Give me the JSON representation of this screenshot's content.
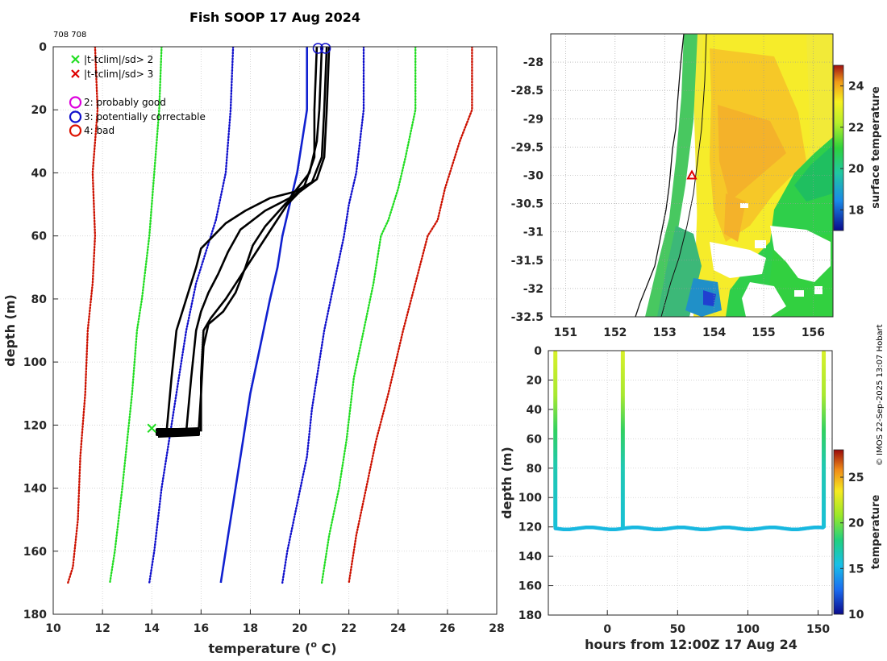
{
  "figure": {
    "title": "Fish SOOP 17 Aug 2024",
    "id_text": "708 708",
    "credit": "© IMOS 22-Sep-2025 13:07 Hobart"
  },
  "colors": {
    "green_clim": "#22dd22",
    "blue_clim": "#1010cc",
    "red_clim": "#cc1100",
    "mean_line": "#1020d0",
    "profiles": "#000000"
  },
  "chart_data": [
    {
      "type": "line",
      "title": "Fish SOOP 17 Aug 2024",
      "xlabel": "temperature (° C)",
      "xlabel_parts": [
        "temperature (",
        "o",
        " C)"
      ],
      "ylabel": "depth (m)",
      "xlim": [
        10,
        28
      ],
      "ylim": [
        180,
        0
      ],
      "xticks": [
        10,
        12,
        14,
        16,
        18,
        20,
        22,
        24,
        26,
        28
      ],
      "yticks": [
        0,
        20,
        40,
        60,
        80,
        100,
        120,
        140,
        160,
        180
      ],
      "grid": true,
      "legend": {
        "position": "top-left",
        "entries": [
          {
            "marker": "x",
            "color": "#22dd22",
            "label": "|t-tclim|/sd> 2"
          },
          {
            "marker": "x",
            "color": "#dd0000",
            "label": "|t-tclim|/sd> 3"
          },
          {
            "marker": "o",
            "color": "#dd00dd",
            "label": "2: probably good"
          },
          {
            "marker": "o",
            "color": "#1010cc",
            "label": "3: potentially correctable"
          },
          {
            "marker": "o",
            "color": "#dd1100",
            "label": "4: bad"
          }
        ]
      },
      "series": [
        {
          "name": "clim -3sd",
          "style": "dotted",
          "color": "#cc1100",
          "points": [
            [
              11.7,
              0
            ],
            [
              11.8,
              20
            ],
            [
              11.6,
              40
            ],
            [
              11.7,
              60
            ],
            [
              11.6,
              75
            ],
            [
              11.4,
              90
            ],
            [
              11.3,
              110
            ],
            [
              11.1,
              130
            ],
            [
              11.0,
              150
            ],
            [
              10.8,
              165
            ],
            [
              10.6,
              170
            ]
          ]
        },
        {
          "name": "clim -2sd",
          "style": "dotted",
          "color": "#22dd22",
          "points": [
            [
              14.4,
              0
            ],
            [
              14.3,
              20
            ],
            [
              14.1,
              40
            ],
            [
              13.9,
              60
            ],
            [
              13.6,
              80
            ],
            [
              13.4,
              90
            ],
            [
              13.2,
              110
            ],
            [
              13.0,
              125
            ],
            [
              12.8,
              140
            ],
            [
              12.5,
              160
            ],
            [
              12.3,
              170
            ]
          ]
        },
        {
          "name": "clim -1sd",
          "style": "dotted",
          "color": "#1010cc",
          "points": [
            [
              17.3,
              0
            ],
            [
              17.2,
              20
            ],
            [
              17.0,
              40
            ],
            [
              16.6,
              55
            ],
            [
              16.2,
              65
            ],
            [
              15.8,
              75
            ],
            [
              15.4,
              90
            ],
            [
              15.1,
              105
            ],
            [
              14.8,
              120
            ],
            [
              14.4,
              140
            ],
            [
              14.1,
              160
            ],
            [
              13.9,
              170
            ]
          ]
        },
        {
          "name": "clim mean",
          "style": "solid",
          "color": "#1020d0",
          "points": [
            [
              20.3,
              0
            ],
            [
              20.3,
              20
            ],
            [
              19.9,
              40
            ],
            [
              19.6,
              50
            ],
            [
              19.3,
              60
            ],
            [
              19.1,
              70
            ],
            [
              18.8,
              80
            ],
            [
              18.4,
              95
            ],
            [
              18.0,
              110
            ],
            [
              17.7,
              125
            ],
            [
              17.4,
              140
            ],
            [
              17.1,
              155
            ],
            [
              16.8,
              170
            ]
          ]
        },
        {
          "name": "clim +1sd",
          "style": "dotted",
          "color": "#1010cc",
          "points": [
            [
              22.6,
              0
            ],
            [
              22.6,
              20
            ],
            [
              22.3,
              40
            ],
            [
              22.0,
              50
            ],
            [
              21.8,
              60
            ],
            [
              21.4,
              75
            ],
            [
              21.0,
              90
            ],
            [
              20.7,
              105
            ],
            [
              20.5,
              115
            ],
            [
              20.3,
              130
            ],
            [
              19.9,
              145
            ],
            [
              19.5,
              160
            ],
            [
              19.3,
              170
            ]
          ]
        },
        {
          "name": "clim +2sd",
          "style": "dotted",
          "color": "#22dd22",
          "points": [
            [
              24.7,
              0
            ],
            [
              24.7,
              20
            ],
            [
              24.3,
              35
            ],
            [
              24.0,
              45
            ],
            [
              23.6,
              55
            ],
            [
              23.3,
              60
            ],
            [
              23.0,
              75
            ],
            [
              22.6,
              90
            ],
            [
              22.2,
              105
            ],
            [
              21.9,
              125
            ],
            [
              21.6,
              140
            ],
            [
              21.2,
              155
            ],
            [
              20.9,
              170
            ]
          ]
        },
        {
          "name": "clim +3sd",
          "style": "dotted",
          "color": "#cc1100",
          "points": [
            [
              27.0,
              0
            ],
            [
              27.0,
              20
            ],
            [
              26.5,
              30
            ],
            [
              25.9,
              45
            ],
            [
              25.6,
              55
            ],
            [
              25.2,
              60
            ],
            [
              24.7,
              75
            ],
            [
              24.2,
              90
            ],
            [
              23.6,
              110
            ],
            [
              23.1,
              125
            ],
            [
              22.7,
              140
            ],
            [
              22.3,
              155
            ],
            [
              22.0,
              170
            ]
          ]
        },
        {
          "name": "profile 1",
          "style": "solid",
          "color": "#000000",
          "points": [
            [
              21.1,
              0
            ],
            [
              21.0,
              20
            ],
            [
              20.9,
              35
            ],
            [
              20.5,
              43
            ],
            [
              19.8,
              46
            ],
            [
              18.8,
              48
            ],
            [
              17.8,
              52
            ],
            [
              17.0,
              56
            ],
            [
              16.5,
              60
            ],
            [
              16.0,
              64
            ],
            [
              15.8,
              70
            ],
            [
              15.4,
              80
            ],
            [
              15.0,
              90
            ],
            [
              14.8,
              105
            ],
            [
              14.6,
              122
            ]
          ]
        },
        {
          "name": "profile 2",
          "style": "solid",
          "color": "#000000",
          "points": [
            [
              20.9,
              0
            ],
            [
              20.8,
              20
            ],
            [
              20.7,
              30
            ],
            [
              20.4,
              40
            ],
            [
              19.6,
              48
            ],
            [
              18.6,
              52
            ],
            [
              17.6,
              58
            ],
            [
              17.1,
              65
            ],
            [
              16.7,
              72
            ],
            [
              16.3,
              78
            ],
            [
              16.0,
              84
            ],
            [
              15.8,
              90
            ],
            [
              15.6,
              105
            ],
            [
              15.4,
              122
            ]
          ]
        },
        {
          "name": "profile 3",
          "style": "solid",
          "color": "#000000",
          "points": [
            [
              21.2,
              0
            ],
            [
              21.1,
              20
            ],
            [
              21.0,
              35
            ],
            [
              20.7,
              42
            ],
            [
              20.0,
              46
            ],
            [
              19.5,
              50
            ],
            [
              19.0,
              56
            ],
            [
              18.5,
              62
            ],
            [
              18.0,
              68
            ],
            [
              17.5,
              74
            ],
            [
              17.0,
              80
            ],
            [
              16.4,
              86
            ],
            [
              16.1,
              90
            ],
            [
              16.0,
              105
            ],
            [
              16.0,
              122
            ]
          ]
        },
        {
          "name": "profile 4",
          "style": "solid",
          "color": "#000000",
          "points": [
            [
              20.7,
              0
            ],
            [
              20.6,
              20
            ],
            [
              20.6,
              35
            ],
            [
              20.2,
              44
            ],
            [
              19.4,
              50
            ],
            [
              18.6,
              57
            ],
            [
              18.1,
              63
            ],
            [
              17.8,
              70
            ],
            [
              17.4,
              78
            ],
            [
              16.9,
              84
            ],
            [
              16.3,
              88
            ],
            [
              16.1,
              95
            ],
            [
              16.0,
              110
            ],
            [
              15.9,
              122
            ]
          ]
        }
      ],
      "flag_markers": {
        "circles_blue": [
          [
            20.75,
            0.5
          ],
          [
            21.05,
            0.5
          ]
        ],
        "green_x": [
          [
            14.0,
            121
          ]
        ]
      }
    },
    {
      "type": "heatmap",
      "title": "",
      "xlim": [
        150.7,
        156.4
      ],
      "ylim": [
        -32.5,
        -27.5
      ],
      "xticks": [
        151,
        152,
        153,
        154,
        155,
        156
      ],
      "yticks": [
        -28,
        -28.5,
        -29,
        -29.5,
        -30,
        -30.5,
        -31,
        -31.5,
        -32,
        -32.5
      ],
      "colorbar": {
        "label": "surface temperature",
        "range": [
          17,
          25
        ],
        "ticks": [
          18,
          20,
          22,
          24
        ]
      },
      "marker": {
        "type": "triangle",
        "color": "#dd0000",
        "lon": 153.55,
        "lat": -30.0
      }
    },
    {
      "type": "scatter",
      "xlabel": "hours from 12:00Z 17 Aug 24",
      "ylabel": "depth (m)",
      "xlim": [
        -42,
        160
      ],
      "ylim": [
        180,
        0
      ],
      "xticks": [
        0,
        50,
        100,
        150
      ],
      "yticks": [
        0,
        20,
        40,
        60,
        80,
        100,
        120,
        140,
        160,
        180
      ],
      "colorbar": {
        "label": "temperature",
        "range": [
          10,
          28
        ],
        "ticks": [
          10,
          15,
          20,
          25
        ]
      },
      "casts_hours": [
        -37,
        11,
        154
      ],
      "tow_depth_m": 121
    }
  ]
}
